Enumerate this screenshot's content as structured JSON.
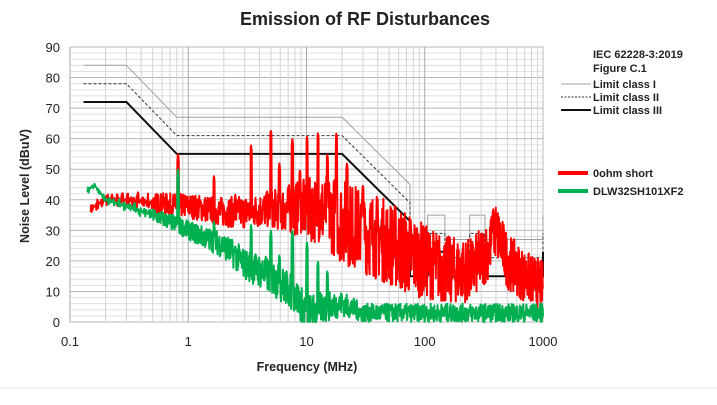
{
  "chart_data": {
    "type": "line",
    "title": "Emission of RF Disturbances",
    "xlabel": "Frequency (MHz)",
    "ylabel": "Noise Level (dBuV)",
    "xscale": "log",
    "xlim": [
      0.1,
      1000
    ],
    "ylim": [
      0,
      90
    ],
    "xticks": [
      "0.1",
      "1",
      "10",
      "100",
      "1000"
    ],
    "xtick_values": [
      0.1,
      1,
      10,
      100,
      1000
    ],
    "yticks": [
      "0",
      "10",
      "20",
      "30",
      "40",
      "50",
      "60",
      "70",
      "80",
      "90"
    ],
    "ytick_values": [
      0,
      10,
      20,
      30,
      40,
      50,
      60,
      70,
      80,
      90
    ],
    "grid": true,
    "legend_header": [
      "IEC 62228-3:2019",
      "Figure C.1"
    ],
    "legend_placement": "right",
    "limits": [
      {
        "name": "Limit class I",
        "color": "#a0a0a0",
        "style": "solid",
        "points": [
          [
            0.13,
            84
          ],
          [
            0.3,
            84
          ],
          [
            0.8,
            67
          ],
          [
            20,
            67
          ],
          [
            75,
            45
          ],
          [
            75,
            27
          ],
          [
            106,
            27
          ],
          [
            106,
            35
          ],
          [
            148,
            35
          ],
          [
            148,
            27
          ],
          [
            240,
            27
          ],
          [
            240,
            35
          ],
          [
            323,
            35
          ],
          [
            323,
            27
          ],
          [
            1000,
            27
          ],
          [
            1000,
            35
          ]
        ]
      },
      {
        "name": "Limit class II",
        "color": "#333333",
        "style": "dashed",
        "points": [
          [
            0.13,
            78
          ],
          [
            0.3,
            78
          ],
          [
            0.8,
            61
          ],
          [
            20,
            61
          ],
          [
            75,
            39
          ],
          [
            75,
            21
          ],
          [
            106,
            21
          ],
          [
            106,
            29
          ],
          [
            148,
            29
          ],
          [
            148,
            21
          ],
          [
            240,
            21
          ],
          [
            240,
            29
          ],
          [
            323,
            29
          ],
          [
            323,
            21
          ],
          [
            1000,
            21
          ],
          [
            1000,
            29
          ]
        ]
      },
      {
        "name": "Limit class III",
        "color": "#111111",
        "style": "solid-thick",
        "points": [
          [
            0.13,
            72
          ],
          [
            0.3,
            72
          ],
          [
            0.8,
            55
          ],
          [
            20,
            55
          ],
          [
            75,
            33
          ],
          [
            75,
            15
          ],
          [
            106,
            15
          ],
          [
            106,
            23
          ],
          [
            148,
            23
          ],
          [
            148,
            15
          ],
          [
            240,
            15
          ],
          [
            240,
            23
          ],
          [
            323,
            23
          ],
          [
            323,
            15
          ],
          [
            1000,
            15
          ],
          [
            1000,
            23
          ]
        ]
      }
    ],
    "series": [
      {
        "name": "0ohm short",
        "color": "#ff0000",
        "envelope": [
          [
            0.15,
            37
          ],
          [
            0.2,
            40
          ],
          [
            0.3,
            40
          ],
          [
            0.5,
            39
          ],
          [
            1,
            38
          ],
          [
            2,
            36
          ],
          [
            3,
            36
          ],
          [
            5,
            37
          ],
          [
            10,
            37
          ],
          [
            15,
            36
          ],
          [
            20,
            33
          ],
          [
            30,
            30
          ],
          [
            50,
            26
          ],
          [
            75,
            22
          ],
          [
            100,
            20
          ],
          [
            150,
            17
          ],
          [
            250,
            17
          ],
          [
            350,
            24
          ],
          [
            400,
            30
          ],
          [
            500,
            20
          ],
          [
            700,
            15
          ],
          [
            1000,
            12
          ]
        ],
        "spread": [
          [
            0.15,
            2
          ],
          [
            1,
            4
          ],
          [
            5,
            6
          ],
          [
            20,
            14
          ],
          [
            75,
            14
          ],
          [
            100,
            12
          ],
          [
            1000,
            8
          ]
        ],
        "peaks": [
          [
            0.82,
            55
          ],
          [
            1.65,
            48
          ],
          [
            2.5,
            42
          ],
          [
            3.4,
            58
          ],
          [
            5,
            63
          ],
          [
            5.9,
            52
          ],
          [
            7.6,
            60
          ],
          [
            8.8,
            50
          ],
          [
            10.1,
            61
          ],
          [
            12.5,
            62
          ],
          [
            15,
            55
          ],
          [
            17.9,
            62
          ],
          [
            22,
            52
          ],
          [
            30,
            45
          ],
          [
            380,
            37
          ]
        ]
      },
      {
        "name": "DLW32SH101XF2",
        "color": "#00b050",
        "envelope": [
          [
            0.14,
            43
          ],
          [
            0.16,
            45
          ],
          [
            0.2,
            40
          ],
          [
            0.3,
            38
          ],
          [
            0.5,
            35
          ],
          [
            0.8,
            32
          ],
          [
            1,
            30
          ],
          [
            2,
            25
          ],
          [
            3,
            19
          ],
          [
            5,
            15
          ],
          [
            8,
            9
          ],
          [
            10,
            3
          ],
          [
            15,
            5
          ],
          [
            20,
            6
          ],
          [
            30,
            3
          ],
          [
            50,
            3
          ],
          [
            100,
            3
          ],
          [
            1000,
            3
          ]
        ],
        "spread": [
          [
            0.14,
            1
          ],
          [
            1,
            3
          ],
          [
            5,
            6
          ],
          [
            10,
            6
          ],
          [
            30,
            3
          ],
          [
            1000,
            3
          ]
        ],
        "peaks": [
          [
            0.82,
            50
          ],
          [
            1.65,
            33
          ],
          [
            2.5,
            25
          ],
          [
            3.4,
            32
          ],
          [
            5,
            30
          ],
          [
            5.9,
            22
          ],
          [
            7.6,
            30
          ],
          [
            10.1,
            26
          ],
          [
            12.5,
            20
          ],
          [
            15,
            17
          ]
        ]
      }
    ]
  }
}
